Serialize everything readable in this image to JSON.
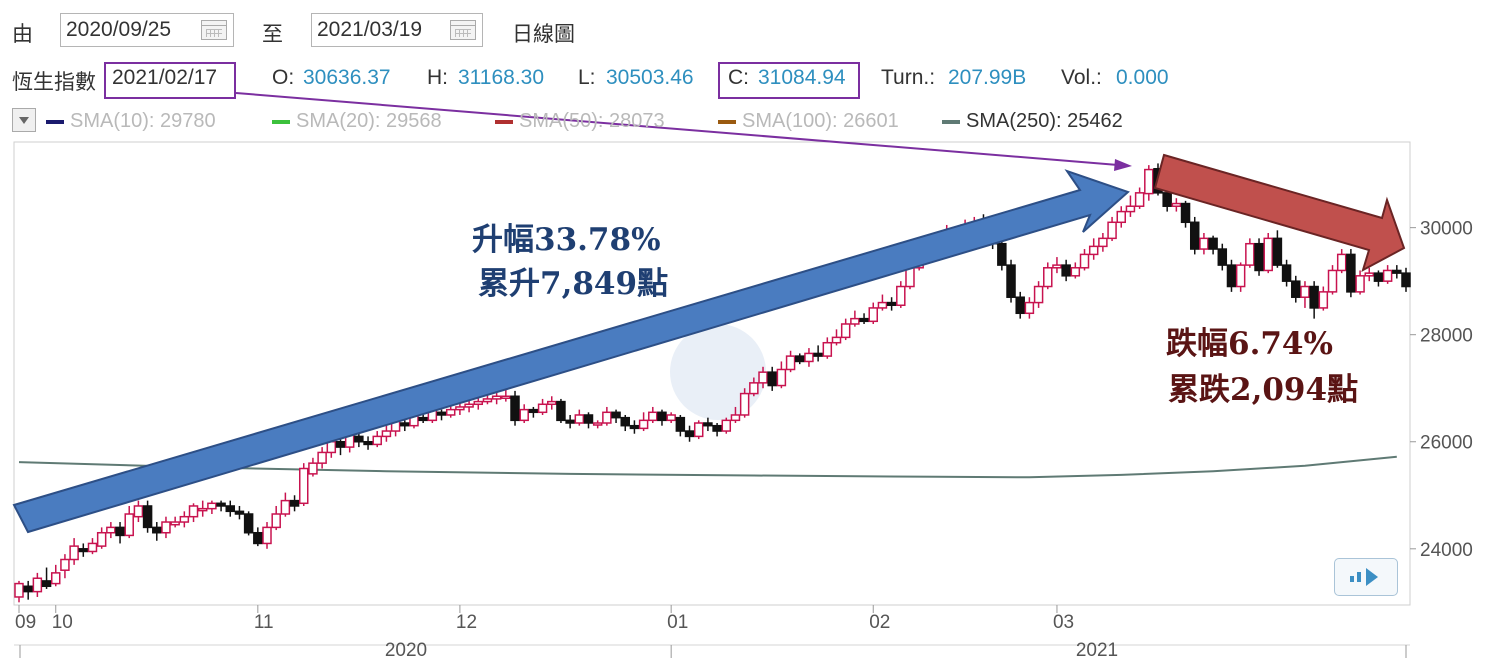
{
  "toolbar": {
    "from_label": "由",
    "from_date": "2020/09/25",
    "to_label": "至",
    "to_date": "2021/03/19",
    "view_label": "日線圖"
  },
  "quote": {
    "name": "恆生指數",
    "date": "2021/02/17",
    "open_label": "O:",
    "open": "30636.37",
    "high_label": "H:",
    "high": "31168.30",
    "low_label": "L:",
    "low": "30503.46",
    "close_label": "C:",
    "close": "31084.94",
    "turn_label": "Turn.:",
    "turn": "207.99B",
    "vol_label": "Vol.:",
    "vol": "0.000"
  },
  "sma": [
    {
      "label": "SMA(10): 29780",
      "color": "#1a1a6e"
    },
    {
      "label": "SMA(20): 29568",
      "color": "#3cc13c"
    },
    {
      "label": "SMA(50): 28073",
      "color": "#b03030"
    },
    {
      "label": "SMA(100): 26601",
      "color": "#9a5a10"
    },
    {
      "label": "SMA(250): 25462",
      "color": "#5f7a74"
    }
  ],
  "annotations": {
    "rise_pct": "升幅33.78%",
    "rise_pts": "累升7,849點",
    "fall_pct": "跌幅6.74%",
    "fall_pts": "累跌2,094點"
  },
  "colors": {
    "up": "#c8134f",
    "down": "#111111",
    "rise_arrow": "#4a7cc0",
    "fall_arrow": "#c0504d",
    "leader_line": "#7b2fa0",
    "sma250": "#5f7a74"
  },
  "icons": {
    "calendar": "calendar-icon",
    "dropdown": "dropdown-arrow-icon",
    "scroll": "scroll-right-icon"
  },
  "chart_data": {
    "type": "candlestick",
    "x_ticks": [
      "09",
      "10",
      "11",
      "12",
      "01",
      "02",
      "03"
    ],
    "x_years": [
      "2020",
      "2021"
    ],
    "y_ticks": [
      24000,
      26000,
      28000,
      30000
    ],
    "ylim": [
      22950,
      31600
    ],
    "sma250": [
      [
        0,
        25620
      ],
      [
        10,
        25570
      ],
      [
        20,
        25520
      ],
      [
        40,
        25450
      ],
      [
        60,
        25400
      ],
      [
        80,
        25370
      ],
      [
        100,
        25345
      ],
      [
        110,
        25335
      ],
      [
        120,
        25380
      ],
      [
        130,
        25450
      ],
      [
        140,
        25550
      ],
      [
        150,
        25720
      ]
    ],
    "candles": [
      [
        23100,
        23350,
        23000,
        23400
      ],
      [
        23300,
        23200,
        23050,
        23400
      ],
      [
        23200,
        23450,
        23100,
        23550
      ],
      [
        23400,
        23300,
        23250,
        23650
      ],
      [
        23350,
        23550,
        23300,
        23700
      ],
      [
        23600,
        23800,
        23450,
        23900
      ],
      [
        23800,
        24050,
        23700,
        24200
      ],
      [
        24000,
        23950,
        23850,
        24100
      ],
      [
        23950,
        24100,
        23900,
        24200
      ],
      [
        24050,
        24300,
        24000,
        24400
      ],
      [
        24300,
        24400,
        24200,
        24500
      ],
      [
        24400,
        24250,
        24100,
        24500
      ],
      [
        24250,
        24650,
        24200,
        24800
      ],
      [
        24600,
        24800,
        24500,
        24900
      ],
      [
        24800,
        24400,
        24300,
        24900
      ],
      [
        24400,
        24300,
        24150,
        24500
      ],
      [
        24300,
        24500,
        24200,
        24600
      ],
      [
        24450,
        24500,
        24400,
        24600
      ],
      [
        24500,
        24600,
        24400,
        24700
      ],
      [
        24600,
        24800,
        24500,
        24850
      ],
      [
        24750,
        24750,
        24600,
        24900
      ],
      [
        24750,
        24850,
        24650,
        24900
      ],
      [
        24850,
        24800,
        24700,
        24900
      ],
      [
        24800,
        24700,
        24600,
        24900
      ],
      [
        24700,
        24650,
        24550,
        24800
      ],
      [
        24650,
        24300,
        24250,
        24700
      ],
      [
        24300,
        24100,
        24050,
        24400
      ],
      [
        24100,
        24400,
        24000,
        24500
      ],
      [
        24400,
        24650,
        24350,
        24800
      ],
      [
        24650,
        24900,
        24600,
        25050
      ],
      [
        24900,
        24800,
        24700,
        25000
      ],
      [
        24850,
        25500,
        24800,
        25600
      ],
      [
        25400,
        25600,
        25350,
        25700
      ],
      [
        25600,
        25800,
        25500,
        25900
      ],
      [
        25800,
        26000,
        25700,
        26100
      ],
      [
        26000,
        25900,
        25750,
        26100
      ],
      [
        25900,
        26150,
        25800,
        26250
      ],
      [
        26100,
        26000,
        25900,
        26200
      ],
      [
        26000,
        25950,
        25850,
        26100
      ],
      [
        25950,
        26100,
        25900,
        26200
      ],
      [
        26100,
        26200,
        26000,
        26300
      ],
      [
        26200,
        26400,
        26100,
        26500
      ],
      [
        26350,
        26300,
        26200,
        26400
      ],
      [
        26300,
        26500,
        26250,
        26600
      ],
      [
        26450,
        26400,
        26350,
        26550
      ],
      [
        26400,
        26600,
        26350,
        26700
      ],
      [
        26550,
        26500,
        26400,
        26600
      ],
      [
        26500,
        26600,
        26450,
        26700
      ],
      [
        26600,
        26650,
        26500,
        26750
      ],
      [
        26650,
        26700,
        26550,
        26800
      ],
      [
        26700,
        26750,
        26600,
        26850
      ],
      [
        26750,
        26800,
        26700,
        26900
      ],
      [
        26800,
        26850,
        26700,
        26950
      ],
      [
        26850,
        26850,
        26750,
        27000
      ],
      [
        26850,
        26400,
        26300,
        26950
      ],
      [
        26400,
        26600,
        26350,
        26700
      ],
      [
        26600,
        26550,
        26450,
        26650
      ],
      [
        26550,
        26700,
        26500,
        26800
      ],
      [
        26700,
        26750,
        26600,
        26850
      ],
      [
        26750,
        26400,
        26350,
        26800
      ],
      [
        26400,
        26350,
        26250,
        26500
      ],
      [
        26350,
        26500,
        26300,
        26600
      ],
      [
        26500,
        26350,
        26250,
        26550
      ],
      [
        26350,
        26350,
        26250,
        26400
      ],
      [
        26350,
        26550,
        26300,
        26650
      ],
      [
        26550,
        26450,
        26350,
        26600
      ],
      [
        26450,
        26300,
        26200,
        26500
      ],
      [
        26300,
        26250,
        26150,
        26400
      ],
      [
        26250,
        26400,
        26200,
        26550
      ],
      [
        26400,
        26550,
        26350,
        26650
      ],
      [
        26550,
        26400,
        26300,
        26600
      ],
      [
        26400,
        26500,
        26350,
        26550
      ],
      [
        26450,
        26200,
        26100,
        26500
      ],
      [
        26200,
        26100,
        26000,
        26300
      ],
      [
        26100,
        26350,
        26050,
        26400
      ],
      [
        26350,
        26300,
        26200,
        26450
      ],
      [
        26300,
        26200,
        26100,
        26350
      ],
      [
        26200,
        26400,
        26150,
        26450
      ],
      [
        26400,
        26500,
        26350,
        26650
      ],
      [
        26500,
        26900,
        26450,
        27000
      ],
      [
        26900,
        27100,
        26850,
        27200
      ],
      [
        27100,
        27300,
        27000,
        27400
      ],
      [
        27300,
        27050,
        26950,
        27400
      ],
      [
        27050,
        27350,
        27000,
        27500
      ],
      [
        27350,
        27600,
        27300,
        27700
      ],
      [
        27600,
        27500,
        27450,
        27650
      ],
      [
        27500,
        27650,
        27400,
        27750
      ],
      [
        27650,
        27600,
        27500,
        27800
      ],
      [
        27600,
        27850,
        27550,
        27950
      ],
      [
        27850,
        27950,
        27800,
        28100
      ],
      [
        27950,
        28200,
        27900,
        28300
      ],
      [
        28200,
        28300,
        28150,
        28450
      ],
      [
        28300,
        28250,
        28200,
        28400
      ],
      [
        28250,
        28500,
        28200,
        28600
      ],
      [
        28500,
        28600,
        28450,
        28750
      ],
      [
        28600,
        28550,
        28450,
        28700
      ],
      [
        28550,
        28900,
        28500,
        29000
      ],
      [
        28900,
        29250,
        28850,
        29350
      ],
      [
        29250,
        29400,
        29200,
        29550
      ],
      [
        29400,
        29550,
        29350,
        29700
      ],
      [
        29550,
        29800,
        29500,
        29900
      ],
      [
        29800,
        29900,
        29700,
        30050
      ],
      [
        29900,
        29850,
        29750,
        30000
      ],
      [
        29850,
        30050,
        29800,
        30150
      ],
      [
        30050,
        30100,
        29950,
        30200
      ],
      [
        30100,
        30050,
        29950,
        30250
      ],
      [
        30050,
        29700,
        29600,
        30150
      ],
      [
        29700,
        29300,
        29200,
        29800
      ],
      [
        29300,
        28700,
        28600,
        29400
      ],
      [
        28700,
        28400,
        28300,
        28800
      ],
      [
        28400,
        28600,
        28300,
        28700
      ],
      [
        28600,
        28900,
        28500,
        29000
      ],
      [
        28900,
        29250,
        28850,
        29350
      ],
      [
        29250,
        29300,
        29150,
        29450
      ],
      [
        29300,
        29100,
        29000,
        29400
      ],
      [
        29100,
        29250,
        29050,
        29350
      ],
      [
        29250,
        29500,
        29200,
        29600
      ],
      [
        29500,
        29650,
        29400,
        29800
      ],
      [
        29650,
        29800,
        29550,
        29900
      ],
      [
        29800,
        30100,
        29750,
        30200
      ],
      [
        30100,
        30300,
        30000,
        30400
      ],
      [
        30300,
        30400,
        30200,
        30600
      ],
      [
        30400,
        30650,
        30350,
        30750
      ],
      [
        30636,
        31085,
        30503,
        31168
      ],
      [
        31100,
        30650,
        30600,
        31200
      ],
      [
        30650,
        30400,
        30300,
        30800
      ],
      [
        30400,
        30450,
        30300,
        30550
      ],
      [
        30450,
        30100,
        30000,
        30500
      ],
      [
        30100,
        29600,
        29500,
        30200
      ],
      [
        29600,
        29800,
        29500,
        29900
      ],
      [
        29800,
        29600,
        29500,
        29850
      ],
      [
        29600,
        29300,
        29200,
        29700
      ],
      [
        29300,
        28900,
        28800,
        29400
      ],
      [
        28900,
        29300,
        28800,
        29350
      ],
      [
        29300,
        29700,
        29250,
        29800
      ],
      [
        29700,
        29200,
        29100,
        29800
      ],
      [
        29200,
        29800,
        29150,
        29900
      ],
      [
        29800,
        29300,
        29250,
        29950
      ],
      [
        29300,
        29000,
        28900,
        29400
      ],
      [
        29000,
        28700,
        28600,
        29100
      ],
      [
        28700,
        28900,
        28500,
        29000
      ],
      [
        28900,
        28500,
        28300,
        29000
      ],
      [
        28500,
        28800,
        28450,
        28900
      ],
      [
        28800,
        29200,
        28750,
        29300
      ],
      [
        29200,
        29500,
        29150,
        29600
      ],
      [
        29500,
        28800,
        28700,
        29600
      ],
      [
        28800,
        29100,
        28750,
        29200
      ],
      [
        29100,
        29150,
        29000,
        29250
      ],
      [
        29150,
        29000,
        28900,
        29200
      ],
      [
        29000,
        29200,
        28950,
        29300
      ],
      [
        29200,
        29150,
        29050,
        29300
      ],
      [
        29150,
        28900,
        28800,
        29250
      ]
    ]
  }
}
